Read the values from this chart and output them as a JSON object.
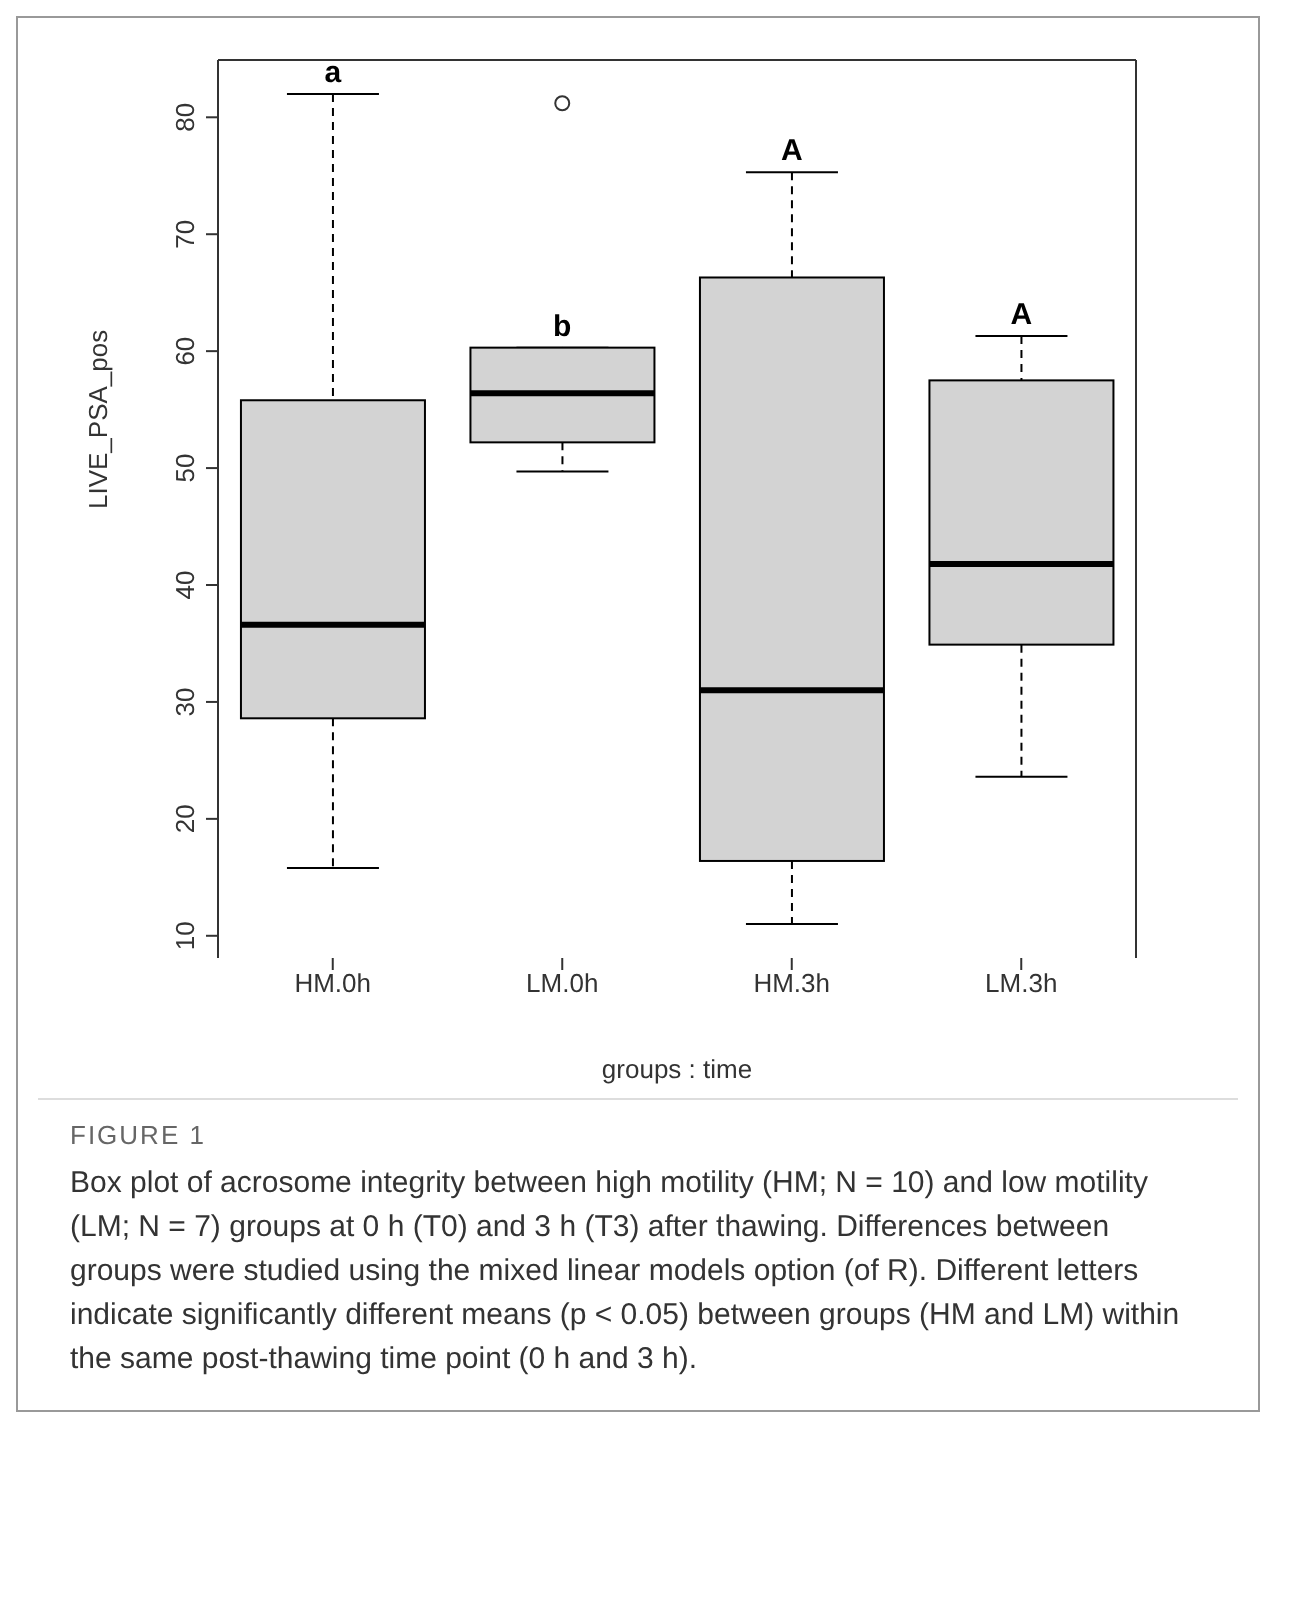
{
  "chart_data": {
    "type": "box",
    "title": "FIGURE 1",
    "xlabel": "groups : time",
    "ylabel": "LIVE_PSA_pos",
    "categories": [
      "HM.0h",
      "LM.0h",
      "HM.3h",
      "LM.3h"
    ],
    "color": "#d3d3d3",
    "boxes": [
      {
        "low": 15.8,
        "q1": 28.6,
        "median": 36.6,
        "q3": 55.8,
        "high": 82
      },
      {
        "low": 49.7,
        "q1": 52.2,
        "median": 56.4,
        "q3": 60.3,
        "high": 60.3,
        "outliers": [
          81.2
        ]
      },
      {
        "low": 11,
        "q1": 16.4,
        "median": 31,
        "q3": 66.3,
        "high": 75.3
      },
      {
        "low": 23.6,
        "q1": 34.9,
        "median": 41.8,
        "q3": 57.5,
        "high": 61.3
      }
    ],
    "ylim": [
      8.1,
      84.9
    ],
    "yticks": [
      10,
      20,
      30,
      40,
      50,
      60,
      70,
      80
    ],
    "grid": false,
    "legend": false,
    "annotations": [
      {
        "text": "a",
        "x": "HM.0h",
        "y": 82
      },
      {
        "text": "b",
        "x": "LM.0h",
        "y": 60.3
      },
      {
        "text": "A",
        "x": "HM.3h",
        "y": 75.3
      },
      {
        "text": "A",
        "x": "LM.3h",
        "y": 61.3
      },
      "Box plot of acrosome integrity between high motility (HM; N = 10) and low motility (LM; N = 7) groups at 0 h (T0) and 3 h (T3) after thawing. Differences between groups were studied using the mixed linear models option (of R). Different letters indicate significantly different means (p < 0.05) between groups (HM and LM) within the same post-thawing time point (0 h and 3 h)."
    ]
  }
}
